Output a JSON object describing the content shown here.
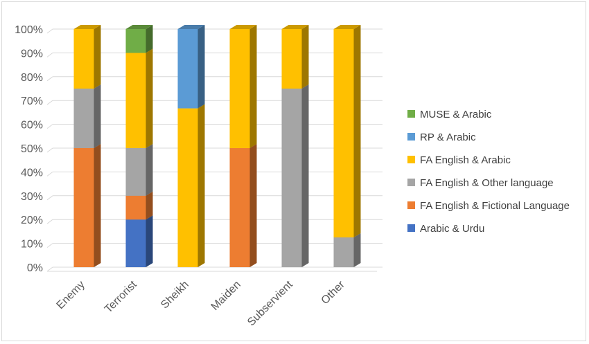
{
  "chart_data": {
    "type": "bar",
    "subtype": "100% stacked column (3D)",
    "title": "",
    "xlabel": "",
    "ylabel": "",
    "ylim": [
      0,
      100
    ],
    "y_tick_labels": [
      "0%",
      "10%",
      "20%",
      "30%",
      "40%",
      "50%",
      "60%",
      "70%",
      "80%",
      "90%",
      "100%"
    ],
    "grid": true,
    "legend_position": "right",
    "categories": [
      "Enemy",
      "Terrorist",
      "Sheikh",
      "Maiden",
      "Subservient",
      "Other"
    ],
    "series": [
      {
        "name": "Arabic & Urdu",
        "color": "#4472c4",
        "values": [
          0,
          20,
          0,
          0,
          0,
          0
        ]
      },
      {
        "name": "FA English & Fictional Language",
        "color": "#ed7d31",
        "values": [
          50,
          10,
          0,
          50,
          0,
          0
        ]
      },
      {
        "name": "FA English & Other language",
        "color": "#a5a5a5",
        "values": [
          25,
          20,
          0,
          0,
          75,
          12.5
        ]
      },
      {
        "name": "FA English & Arabic",
        "color": "#ffc000",
        "values": [
          25,
          40,
          66.7,
          50,
          25,
          87.5
        ]
      },
      {
        "name": "RP & Arabic",
        "color": "#5b9bd5",
        "values": [
          0,
          0,
          33.3,
          0,
          0,
          0
        ]
      },
      {
        "name": "MUSE & Arabic",
        "color": "#70ad47",
        "values": [
          0,
          10,
          0,
          0,
          0,
          0
        ]
      }
    ]
  }
}
